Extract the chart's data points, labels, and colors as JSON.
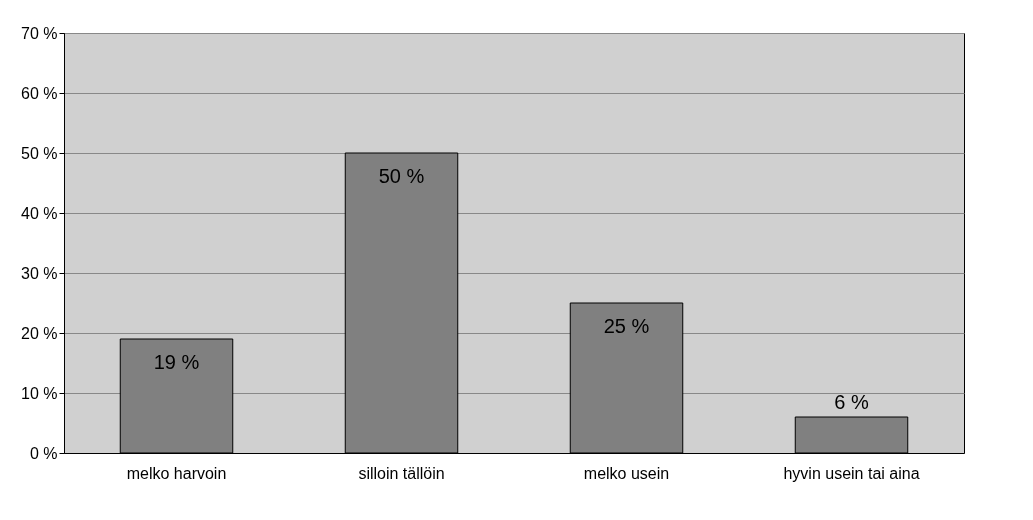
{
  "chart_data": {
    "type": "bar",
    "categories": [
      "melko harvoin",
      "silloin tällöin",
      "melko usein",
      "hyvin usein tai aina"
    ],
    "values": [
      19,
      50,
      25,
      6
    ],
    "value_labels": [
      "19 %",
      "50 %",
      "25 %",
      "6 %"
    ],
    "color": "#808080",
    "ylim": [
      0,
      70
    ],
    "yticks": [
      {
        "value": 0,
        "label": "0 %"
      },
      {
        "value": 10,
        "label": "10 %"
      },
      {
        "value": 20,
        "label": "20 %"
      },
      {
        "value": 30,
        "label": "30 %"
      },
      {
        "value": 40,
        "label": "40 %"
      },
      {
        "value": 50,
        "label": "50 %"
      },
      {
        "value": 60,
        "label": "60 %"
      },
      {
        "value": 70,
        "label": "70 %"
      }
    ],
    "grid": "y"
  }
}
